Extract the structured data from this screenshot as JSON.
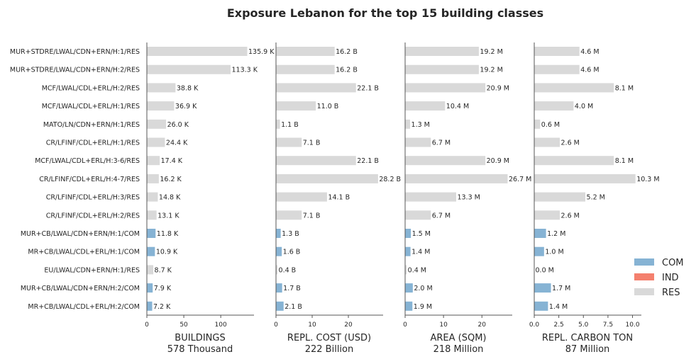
{
  "chart_data": {
    "type": "bar",
    "orientation": "horizontal",
    "title": "Exposure Lebanon for the top 15 building classes",
    "categories": [
      "MUR+STDRE/LWAL/CDN+ERN/H:1/RES",
      "MUR+STDRE/LWAL/CDN+ERN/H:2/RES",
      "MCF/LWAL/CDL+ERL/H:2/RES",
      "MCF/LWAL/CDL+ERL/H:1/RES",
      "MATO/LN/CDN+ERN/H:1/RES",
      "CR/LFINF/CDL+ERL/H:1/RES",
      "MCF/LWAL/CDL+ERL/H:3-6/RES",
      "CR/LFINF/CDL+ERL/H:4-7/RES",
      "CR/LFINF/CDL+ERL/H:3/RES",
      "CR/LFINF/CDL+ERL/H:2/RES",
      "MUR+CB/LWAL/CDN+ERN/H:1/COM",
      "MR+CB/LWAL/CDL+ERL/H:1/COM",
      "EU/LWAL/CDN+ERN/H:1/RES",
      "MUR+CB/LWAL/CDN+ERN/H:2/COM",
      "MR+CB/LWAL/CDL+ERL/H:2/COM"
    ],
    "occupancy": [
      "RES",
      "RES",
      "RES",
      "RES",
      "RES",
      "RES",
      "RES",
      "RES",
      "RES",
      "RES",
      "COM",
      "COM",
      "RES",
      "COM",
      "COM"
    ],
    "colors": {
      "COM": "#86b3d4",
      "IND": "#f4806e",
      "RES": "#d9d9d9"
    },
    "panels": [
      {
        "xlabel": "BUILDINGS",
        "total": "578 Thousand",
        "xlim": [
          0,
          145
        ],
        "xticks": [
          0,
          50,
          100
        ],
        "values": [
          135.9,
          113.3,
          38.8,
          36.9,
          26.0,
          24.4,
          17.4,
          16.2,
          14.8,
          13.1,
          11.8,
          10.9,
          8.7,
          7.9,
          7.2
        ],
        "labels": [
          "135.9 K",
          "113.3 K",
          "38.8 K",
          "36.9 K",
          "26.0 K",
          "24.4 K",
          "17.4 K",
          "16.2 K",
          "14.8 K",
          "13.1 K",
          "11.8 K",
          "10.9 K",
          "8.7 K",
          "7.9 K",
          "7.2 K"
        ]
      },
      {
        "xlabel": "REPL. COST (USD)",
        "total": "222 Billion",
        "xlim": [
          0,
          29.6
        ],
        "xticks": [
          0,
          10,
          20
        ],
        "values": [
          16.2,
          16.2,
          22.1,
          11.0,
          1.1,
          7.1,
          22.1,
          28.2,
          14.1,
          7.1,
          1.3,
          1.6,
          0.4,
          1.7,
          2.1
        ],
        "labels": [
          "16.2 B",
          "16.2 B",
          "22.1 B",
          "11.0 B",
          "1.1 B",
          "7.1 B",
          "22.1 B",
          "28.2 B",
          "14.1 B",
          "7.1 B",
          "1.3 B",
          "1.6 B",
          "0.4 B",
          "1.7 B",
          "2.1 B"
        ]
      },
      {
        "xlabel": "AREA (SQM)",
        "total": "218 Million",
        "xlim": [
          0,
          27.9
        ],
        "xticks": [
          0,
          10,
          20
        ],
        "values": [
          19.2,
          19.2,
          20.9,
          10.4,
          1.3,
          6.7,
          20.9,
          26.7,
          13.3,
          6.7,
          1.5,
          1.4,
          0.4,
          2.0,
          1.9
        ],
        "labels": [
          "19.2 M",
          "19.2 M",
          "20.9 M",
          "10.4 M",
          "1.3 M",
          "6.7 M",
          "20.9 M",
          "26.7 M",
          "13.3 M",
          "6.7 M",
          "1.5 M",
          "1.4 M",
          "0.4 M",
          "2.0 M",
          "1.9 M"
        ]
      },
      {
        "xlabel": "REPL. CARBON TON",
        "total": "87 Million",
        "xlim": [
          0,
          10.9
        ],
        "xticks": [
          0.0,
          2.5,
          5.0,
          7.5,
          10.0
        ],
        "xtick_labels": [
          "0.0",
          "2.5",
          "5.0",
          "7.5",
          "10.0"
        ],
        "values": [
          4.6,
          4.6,
          8.1,
          4.0,
          0.6,
          2.6,
          8.1,
          10.3,
          5.2,
          2.6,
          1.2,
          1.0,
          0.0,
          1.7,
          1.4
        ],
        "labels": [
          "4.6 M",
          "4.6 M",
          "8.1 M",
          "4.0 M",
          "0.6 M",
          "2.6 M",
          "8.1 M",
          "10.3 M",
          "5.2 M",
          "2.6 M",
          "1.2 M",
          "1.0 M",
          "0.0 M",
          "1.7 M",
          "1.4 M"
        ]
      }
    ],
    "legend": [
      "COM",
      "IND",
      "RES"
    ],
    "legend_position": "right"
  }
}
